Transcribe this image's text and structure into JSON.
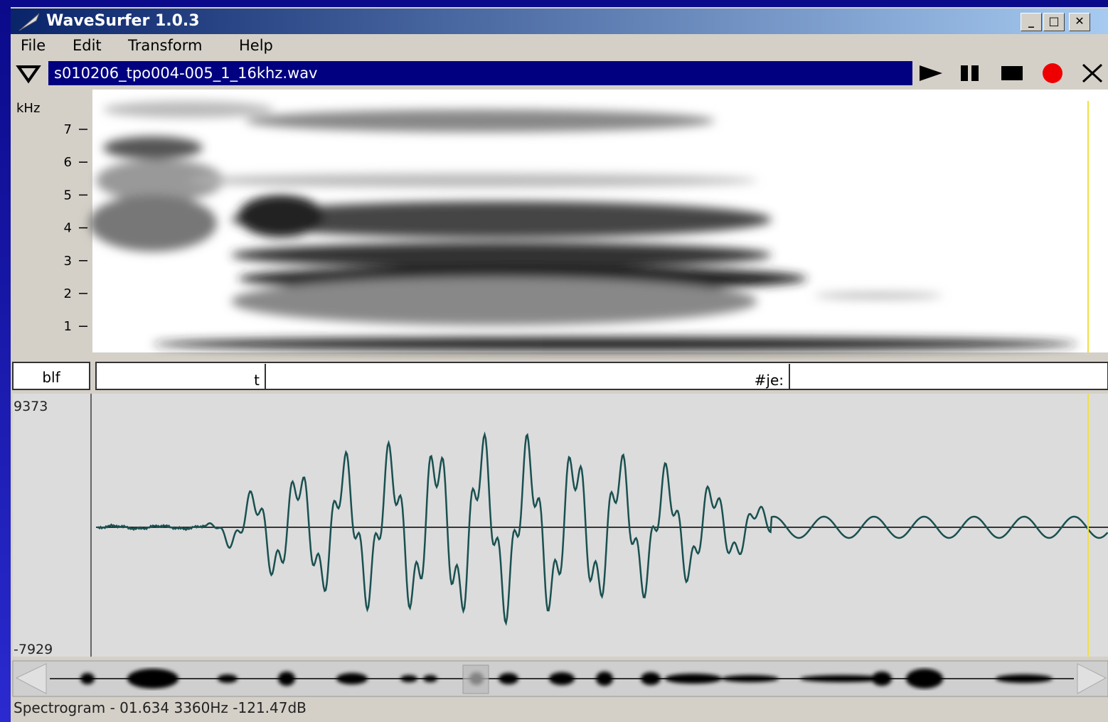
{
  "window": {
    "title": "WaveSurfer 1.0.3"
  },
  "menu": [
    "File",
    "Edit",
    "Transform",
    "Help"
  ],
  "file_bar": {
    "filename": "s010206_tpo004-005_1_16khz.wav"
  },
  "spectrogram": {
    "unit": "kHz",
    "ticks": [
      7,
      6,
      5,
      4,
      3,
      2,
      1
    ]
  },
  "label_pane": {
    "name": "blf",
    "labels": [
      "t",
      "#je:"
    ]
  },
  "waveform": {
    "max": 9373,
    "min": -7929
  },
  "status": "Spectrogram - 01.634 3360Hz -121.47dB"
}
